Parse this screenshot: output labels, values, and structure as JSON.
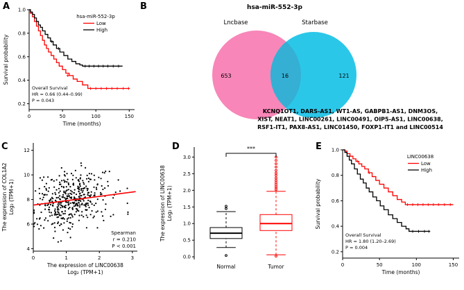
{
  "panels": {
    "A": {
      "label": "A"
    },
    "B": {
      "label": "B"
    },
    "C": {
      "label": "C"
    },
    "D": {
      "label": "D"
    },
    "E": {
      "label": "E"
    }
  },
  "colors": {
    "red": "#ff0000",
    "black": "#000000",
    "venn_pink": "#F886B8",
    "venn_cyan": "#2BC7E9",
    "venn_overlap": "#35AFD4"
  },
  "chart_data": [
    {
      "id": "panelA",
      "type": "line",
      "subtype": "kaplan_meier",
      "legend_title": "hsa-miR-552-3p",
      "xlabel": "Time (months)",
      "ylabel": "Survival probability",
      "xlim": [
        0,
        158
      ],
      "ylim": [
        0.15,
        1.0
      ],
      "xtick_vals": [
        0,
        50,
        100,
        150
      ],
      "xtick_labels": [
        "0",
        "50",
        "100",
        "150"
      ],
      "ytick_vals": [
        0.2,
        0.4,
        0.6,
        0.8,
        1.0
      ],
      "ytick_labels": [
        "0.2",
        "0.4",
        "0.6",
        "0.8",
        "1.0"
      ],
      "annotation": [
        "Overall Survival",
        "HR = 0.66 (0.44–0.99)",
        "P = 0.043"
      ],
      "series": [
        {
          "name": "Low",
          "color": "#ff0000",
          "x": [
            0,
            2,
            5,
            8,
            11,
            14,
            17,
            20,
            23,
            26,
            29,
            33,
            37,
            41,
            45,
            50,
            55,
            60,
            66,
            72,
            80,
            88,
            150
          ],
          "y": [
            1.0,
            0.97,
            0.94,
            0.9,
            0.86,
            0.82,
            0.78,
            0.74,
            0.7,
            0.67,
            0.64,
            0.61,
            0.58,
            0.55,
            0.52,
            0.49,
            0.46,
            0.44,
            0.41,
            0.39,
            0.36,
            0.33,
            0.33
          ],
          "censors": [
            [
              58,
              0.44
            ],
            [
              92,
              0.33
            ],
            [
              100,
              0.33
            ],
            [
              108,
              0.33
            ],
            [
              116,
              0.33
            ],
            [
              124,
              0.33
            ],
            [
              132,
              0.33
            ],
            [
              141,
              0.33
            ],
            [
              149,
              0.33
            ]
          ]
        },
        {
          "name": "High",
          "color": "#000000",
          "x": [
            0,
            2,
            5,
            8,
            11,
            14,
            17,
            20,
            24,
            28,
            32,
            36,
            41,
            46,
            52,
            58,
            64,
            70,
            76,
            80,
            140
          ],
          "y": [
            1.0,
            0.98,
            0.96,
            0.93,
            0.9,
            0.87,
            0.85,
            0.82,
            0.79,
            0.76,
            0.73,
            0.7,
            0.67,
            0.64,
            0.61,
            0.58,
            0.56,
            0.54,
            0.53,
            0.52,
            0.52
          ],
          "censors": [
            [
              34,
              0.73
            ],
            [
              44,
              0.67
            ],
            [
              84,
              0.52
            ],
            [
              90,
              0.52
            ],
            [
              97,
              0.52
            ],
            [
              104,
              0.52
            ],
            [
              111,
              0.52
            ],
            [
              118,
              0.52
            ],
            [
              126,
              0.52
            ],
            [
              134,
              0.52
            ]
          ]
        }
      ]
    },
    {
      "id": "panelB",
      "type": "venn",
      "title": "hsa-miR-552-3p",
      "sets": [
        {
          "name": "Lncbase",
          "count": "653",
          "color": "#F886B8"
        },
        {
          "name": "Starbase",
          "count": "121",
          "color": "#2BC7E9"
        }
      ],
      "overlap": {
        "count": "16",
        "color": "#35AFD4"
      },
      "gene_list_lines": [
        "KCNQ1OT1, DARS-AS1, WT1-AS, GABPB1-AS1, DNM3OS,",
        "XIST, NEAT1, LINC00261, LINC00491, OIP5-AS1, LINC00638,",
        "RSF1-IT1, PAX8-AS1, LINC01450, FOXP1-IT1 and LINC00514"
      ]
    },
    {
      "id": "panelC",
      "type": "scatter",
      "xlabel_lines": [
        "The expression of LINC00638",
        "Log₂ (TPM+1)"
      ],
      "ylabel_lines": [
        "The expression of COL1A2",
        "Log₂ (TPM+1)"
      ],
      "xlim": [
        0,
        3.15
      ],
      "ylim": [
        3.8,
        12.6
      ],
      "xtick_vals": [
        0,
        1,
        2,
        3
      ],
      "xtick_labels": [
        "0",
        "1",
        "2",
        "3"
      ],
      "ytick_vals": [
        4,
        6,
        8,
        10,
        12
      ],
      "ytick_labels": [
        "4",
        "6",
        "8",
        "10",
        "12"
      ],
      "annotation": [
        {
          "text": "Spearman",
          "color": "#ff0000"
        },
        {
          "text": "r = 0.210",
          "color": "#ff0000"
        },
        {
          "text": "P < 0.001",
          "color": "#ff0000"
        }
      ],
      "points": {
        "n": 420,
        "seed": 7,
        "x_mean": 1.15,
        "x_sd": 0.55,
        "slope": 0.35,
        "intercept": 7.55,
        "noise_sd": 1.15,
        "color": "#000000"
      },
      "trend": {
        "x1": 0,
        "y1": 7.55,
        "x2": 3.1,
        "y2": 8.64,
        "color": "#ff0000"
      }
    },
    {
      "id": "panelD",
      "type": "box",
      "ylabel_lines": [
        "The expression of LINC00638",
        "Log₂ (TPM+1)"
      ],
      "ylim": [
        -0.08,
        3.3
      ],
      "ytick_vals": [
        0.0,
        0.5,
        1.0,
        1.5,
        2.0,
        2.5,
        3.0
      ],
      "ytick_labels": [
        "0.0",
        "0.5",
        "1.0",
        "1.5",
        "2.0",
        "2.5",
        "3.0"
      ],
      "categories": [
        "Normal",
        "Tumor"
      ],
      "significance": "***",
      "boxes": [
        {
          "name": "Normal",
          "color": "#000000",
          "whisker_low": 0.28,
          "q1": 0.55,
          "median": 0.71,
          "q3": 0.88,
          "whisker_high": 1.36,
          "outliers": [
            0.04,
            1.45,
            1.52
          ]
        },
        {
          "name": "Tumor",
          "color": "#ff0000",
          "whisker_low": 0.06,
          "q1": 0.79,
          "median": 1.0,
          "q3": 1.27,
          "whisker_high": 1.97,
          "outliers": [
            0.02,
            2.02,
            2.07,
            2.12,
            2.18,
            2.24,
            2.3,
            2.37,
            2.45,
            2.52,
            2.6,
            2.7,
            2.8,
            2.9,
            3.0
          ]
        }
      ]
    },
    {
      "id": "panelE",
      "type": "line",
      "subtype": "kaplan_meier",
      "legend_title": "LINC00638",
      "xlabel": "Time (months)",
      "ylabel": "Survival probability",
      "xlim": [
        0,
        158
      ],
      "ylim": [
        0.15,
        1.0
      ],
      "xtick_vals": [
        0,
        50,
        100,
        150
      ],
      "xtick_labels": [
        "0",
        "50",
        "100",
        "150"
      ],
      "ytick_vals": [
        0.2,
        0.4,
        0.6,
        0.8,
        1.0
      ],
      "ytick_labels": [
        "0.2",
        "0.4",
        "0.6",
        "0.8",
        "1.0"
      ],
      "annotation": [
        "Overall Survival",
        "HR = 1.80 (1.20–2.69)",
        "P = 0.004"
      ],
      "series": [
        {
          "name": "Low",
          "color": "#ff0000",
          "x": [
            0,
            3,
            6,
            10,
            14,
            18,
            22,
            26,
            30,
            35,
            40,
            45,
            50,
            56,
            62,
            68,
            74,
            80,
            85,
            150
          ],
          "y": [
            1.0,
            0.99,
            0.97,
            0.95,
            0.93,
            0.91,
            0.89,
            0.87,
            0.85,
            0.82,
            0.79,
            0.76,
            0.73,
            0.7,
            0.67,
            0.64,
            0.61,
            0.59,
            0.57,
            0.57
          ],
          "censors": [
            [
              20,
              0.91
            ],
            [
              36,
              0.82
            ],
            [
              88,
              0.57
            ],
            [
              95,
              0.57
            ],
            [
              102,
              0.57
            ],
            [
              109,
              0.57
            ],
            [
              116,
              0.57
            ],
            [
              123,
              0.57
            ],
            [
              130,
              0.57
            ],
            [
              138,
              0.57
            ],
            [
              146,
              0.57
            ]
          ]
        },
        {
          "name": "High",
          "color": "#000000",
          "x": [
            0,
            3,
            6,
            9,
            12,
            16,
            20,
            24,
            28,
            32,
            36,
            41,
            46,
            51,
            56,
            62,
            68,
            74,
            80,
            86,
            90,
            118
          ],
          "y": [
            1.0,
            0.98,
            0.95,
            0.92,
            0.89,
            0.85,
            0.81,
            0.77,
            0.74,
            0.7,
            0.67,
            0.63,
            0.6,
            0.56,
            0.53,
            0.49,
            0.46,
            0.43,
            0.4,
            0.38,
            0.36,
            0.36
          ],
          "censors": [
            [
              95,
              0.36
            ],
            [
              103,
              0.36
            ],
            [
              111,
              0.36
            ],
            [
              117,
              0.36
            ]
          ]
        }
      ]
    }
  ]
}
